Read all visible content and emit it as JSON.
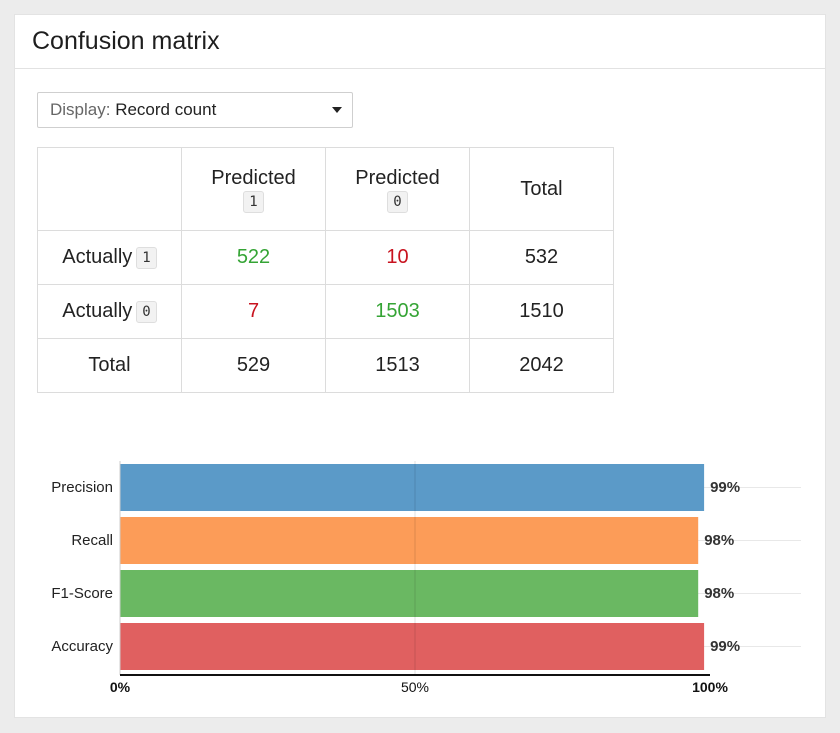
{
  "panel": {
    "title": "Confusion matrix"
  },
  "display_select": {
    "prefix": "Display:",
    "value": "Record count"
  },
  "matrix": {
    "headers": [
      {
        "label": "Predicted",
        "code": "1"
      },
      {
        "label": "Predicted",
        "code": "0"
      },
      {
        "label": "Total"
      }
    ],
    "rows": [
      {
        "label": "Actually",
        "code": "1",
        "cells": [
          "522",
          "10",
          "532"
        ]
      },
      {
        "label": "Actually",
        "code": "0",
        "cells": [
          "7",
          "1503",
          "1510"
        ]
      },
      {
        "label": "Total",
        "cells": [
          "529",
          "1513",
          "2042"
        ]
      }
    ],
    "colors": {
      "correct": "#35a435",
      "incorrect": "#c8131f"
    }
  },
  "chart_data": {
    "type": "bar",
    "orientation": "horizontal",
    "categories": [
      "Precision",
      "Recall",
      "F1-Score",
      "Accuracy"
    ],
    "values": [
      99,
      98,
      98,
      99
    ],
    "value_labels": [
      "99%",
      "98%",
      "98%",
      "99%"
    ],
    "colors": [
      "#5b9ac8",
      "#fc9c58",
      "#6ab862",
      "#e06060"
    ],
    "xlim": [
      0,
      100
    ],
    "x_ticks": [
      "0%",
      "50%",
      "100%"
    ],
    "grid": true
  }
}
